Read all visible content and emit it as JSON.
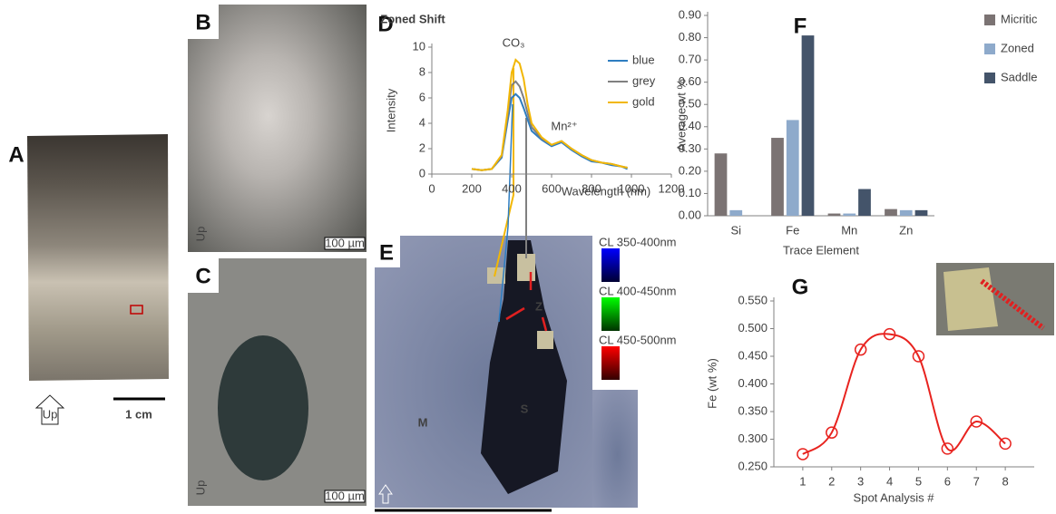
{
  "figure": {
    "panel_labels": [
      "A",
      "B",
      "C",
      "D",
      "E",
      "F",
      "G"
    ],
    "scale_bar_a": "1 cm",
    "up": "Up",
    "scale_bar_bc": "100 µm",
    "cl_legend": [
      "CL 350-400nm",
      "CL 400-450nm",
      "CL 450-500nm"
    ],
    "region_labels": [
      "M",
      "S",
      "Z"
    ]
  },
  "chart_data": [
    {
      "type": "line",
      "title": "Zoned Shift",
      "x_label": "Wavelength (nm)",
      "y_label": "Intensity",
      "annotations": [
        "CO₃",
        "Mn²⁺"
      ],
      "x": [
        200,
        250,
        300,
        350,
        380,
        400,
        420,
        440,
        460,
        480,
        500,
        550,
        600,
        650,
        700,
        750,
        800,
        850,
        900,
        950,
        980
      ],
      "series": [
        {
          "name": "blue",
          "color": "#2e7dc0",
          "values": [
            0.4,
            0.3,
            0.4,
            1.3,
            4.2,
            6.0,
            6.3,
            6.0,
            5.2,
            4.3,
            3.4,
            2.7,
            2.2,
            2.5,
            1.9,
            1.4,
            1.0,
            0.9,
            0.7,
            0.6,
            0.4
          ]
        },
        {
          "name": "grey",
          "color": "#808080",
          "values": [
            0.4,
            0.3,
            0.4,
            1.4,
            4.6,
            7.0,
            7.3,
            6.9,
            6.0,
            4.8,
            3.7,
            2.8,
            2.3,
            2.6,
            2.0,
            1.5,
            1.1,
            0.9,
            0.8,
            0.6,
            0.5
          ]
        },
        {
          "name": "gold",
          "color": "#f2b705",
          "values": [
            0.4,
            0.3,
            0.4,
            1.5,
            5.0,
            8.0,
            9.0,
            8.7,
            7.5,
            5.5,
            4.0,
            2.9,
            2.3,
            2.6,
            2.0,
            1.5,
            1.1,
            0.9,
            0.8,
            0.6,
            0.5
          ]
        }
      ],
      "xlim": [
        0,
        1200
      ],
      "xticks": [
        0,
        200,
        400,
        600,
        800,
        1000,
        1200
      ],
      "ylim": [
        0,
        10
      ],
      "yticks": [
        0,
        2,
        4,
        6,
        8,
        10
      ],
      "legend": "top-right"
    },
    {
      "type": "bar",
      "x_label": "Trace Element",
      "y_label": "Average wt %",
      "categories": [
        "Si",
        "Fe",
        "Mn",
        "Zn"
      ],
      "series": [
        {
          "name": "Micritic",
          "color": "#7b7373",
          "values": [
            0.28,
            0.35,
            0.01,
            0.03
          ]
        },
        {
          "name": "Zoned",
          "color": "#8eaacb",
          "values": [
            0.025,
            0.43,
            0.01,
            0.025
          ]
        },
        {
          "name": "Saddle",
          "color": "#44546a",
          "values": [
            0,
            0.81,
            0.12,
            0.025
          ]
        }
      ],
      "ylim": [
        0,
        0.9
      ],
      "yticks": [
        {
          "value": 0,
          "label": "0.00"
        },
        {
          "value": 0.1,
          "label": "0.10"
        },
        {
          "value": 0.2,
          "label": "0.20"
        },
        {
          "value": 0.3,
          "label": "0.30"
        },
        {
          "value": 0.4,
          "label": "0.40"
        },
        {
          "value": 0.5,
          "label": "0.50"
        },
        {
          "value": 0.6,
          "label": "0.60"
        },
        {
          "value": 0.7,
          "label": "0.70"
        },
        {
          "value": 0.8,
          "label": "0.80"
        },
        {
          "value": 0.9,
          "label": "0.90"
        }
      ],
      "legend": "right"
    },
    {
      "type": "line",
      "x_label": "Spot Analysis #",
      "y_label": "Fe (wt %)",
      "smooth": true,
      "marker": "open-circle",
      "x": [
        1,
        2,
        3,
        4,
        5,
        6,
        7,
        8
      ],
      "color": "#e8231f",
      "values": [
        0.273,
        0.312,
        0.462,
        0.49,
        0.45,
        0.283,
        0.332,
        0.292
      ],
      "xlim": [
        0,
        9
      ],
      "xticks": [
        1,
        2,
        3,
        4,
        5,
        6,
        7,
        8
      ],
      "ylim": [
        0.25,
        0.55
      ],
      "yticks": [
        {
          "value": 0.25,
          "label": "0.250"
        },
        {
          "value": 0.3,
          "label": "0.300"
        },
        {
          "value": 0.35,
          "label": "0.350"
        },
        {
          "value": 0.4,
          "label": "0.400"
        },
        {
          "value": 0.45,
          "label": "0.450"
        },
        {
          "value": 0.5,
          "label": "0.500"
        },
        {
          "value": 0.55,
          "label": "0.550"
        }
      ]
    }
  ]
}
